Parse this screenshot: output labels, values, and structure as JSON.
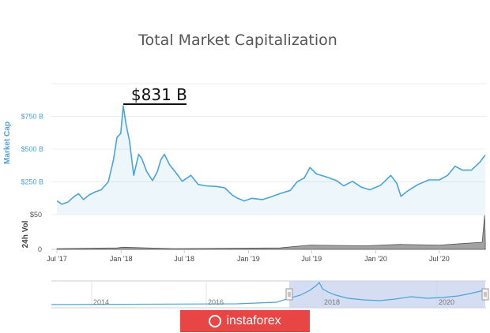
{
  "chart_data": {
    "type": "area",
    "title": "Total Market Capitalization",
    "ylabel": "Market Cap",
    "volume_label": "24h Vol",
    "y_tick_labels": [
      "$250 B",
      "$500 B",
      "$750 B"
    ],
    "y_ticks": [
      250,
      500,
      750
    ],
    "ylim": [
      0,
      900
    ],
    "vol_tick_labels": [
      "0",
      "$50"
    ],
    "x_tick_labels": [
      "Jul '17",
      "Jan '18",
      "Jul '18",
      "Jan '19",
      "Jul '19",
      "Jan '20",
      "Jul '20"
    ],
    "navigator_labels": [
      "2014",
      "2016",
      "2018",
      "2020"
    ],
    "annotation": "$831 B",
    "series": [
      {
        "points": [
          [
            "2017-07-01",
            105
          ],
          [
            "2017-07-15",
            80
          ],
          [
            "2017-08-01",
            95
          ],
          [
            "2017-08-20",
            140
          ],
          [
            "2017-09-01",
            160
          ],
          [
            "2017-09-15",
            115
          ],
          [
            "2017-10-01",
            150
          ],
          [
            "2017-10-20",
            175
          ],
          [
            "2017-11-05",
            190
          ],
          [
            "2017-11-25",
            250
          ],
          [
            "2017-12-10",
            420
          ],
          [
            "2017-12-20",
            590
          ],
          [
            "2017-12-31",
            620
          ],
          [
            "2018-01-07",
            831
          ],
          [
            "2018-01-15",
            690
          ],
          [
            "2018-01-25",
            560
          ],
          [
            "2018-02-06",
            300
          ],
          [
            "2018-02-20",
            460
          ],
          [
            "2018-03-01",
            430
          ],
          [
            "2018-03-15",
            330
          ],
          [
            "2018-04-01",
            260
          ],
          [
            "2018-04-15",
            330
          ],
          [
            "2018-04-25",
            420
          ],
          [
            "2018-05-05",
            460
          ],
          [
            "2018-05-20",
            380
          ],
          [
            "2018-06-10",
            310
          ],
          [
            "2018-06-25",
            255
          ],
          [
            "2018-07-20",
            300
          ],
          [
            "2018-08-10",
            230
          ],
          [
            "2018-09-01",
            220
          ],
          [
            "2018-10-01",
            215
          ],
          [
            "2018-10-25",
            205
          ],
          [
            "2018-11-15",
            150
          ],
          [
            "2018-12-01",
            125
          ],
          [
            "2018-12-20",
            105
          ],
          [
            "2019-01-10",
            125
          ],
          [
            "2019-02-10",
            115
          ],
          [
            "2019-03-01",
            130
          ],
          [
            "2019-04-01",
            160
          ],
          [
            "2019-05-01",
            185
          ],
          [
            "2019-05-20",
            250
          ],
          [
            "2019-06-10",
            280
          ],
          [
            "2019-06-26",
            360
          ],
          [
            "2019-07-15",
            310
          ],
          [
            "2019-08-10",
            290
          ],
          [
            "2019-09-10",
            260
          ],
          [
            "2019-10-01",
            220
          ],
          [
            "2019-10-26",
            255
          ],
          [
            "2019-11-20",
            210
          ],
          [
            "2019-12-15",
            190
          ],
          [
            "2020-01-15",
            225
          ],
          [
            "2020-02-13",
            300
          ],
          [
            "2020-03-01",
            240
          ],
          [
            "2020-03-13",
            140
          ],
          [
            "2020-04-01",
            180
          ],
          [
            "2020-05-01",
            230
          ],
          [
            "2020-06-01",
            265
          ],
          [
            "2020-07-01",
            265
          ],
          [
            "2020-07-25",
            300
          ],
          [
            "2020-08-15",
            370
          ],
          [
            "2020-09-05",
            340
          ],
          [
            "2020-10-01",
            340
          ],
          [
            "2020-10-25",
            400
          ],
          [
            "2020-11-05",
            440
          ],
          [
            "2020-11-10",
            455
          ]
        ]
      }
    ],
    "volume": [
      [
        "2017-07-01",
        1
      ],
      [
        "2017-12-20",
        2
      ],
      [
        "2018-01-07",
        3
      ],
      [
        "2018-06-01",
        1
      ],
      [
        "2019-04-01",
        2
      ],
      [
        "2019-06-26",
        6
      ],
      [
        "2019-12-01",
        5
      ],
      [
        "2020-03-13",
        7
      ],
      [
        "2020-07-01",
        6
      ],
      [
        "2020-09-01",
        8
      ],
      [
        "2020-11-01",
        10
      ],
      [
        "2020-11-08",
        48
      ],
      [
        "2020-11-10",
        10
      ]
    ],
    "colors": {
      "line": "#4aa3d9",
      "volume": "#555555",
      "navigator_fill": "#c6d2ec",
      "watermark": "#e84545"
    }
  },
  "watermark": {
    "text": "instaforex"
  }
}
